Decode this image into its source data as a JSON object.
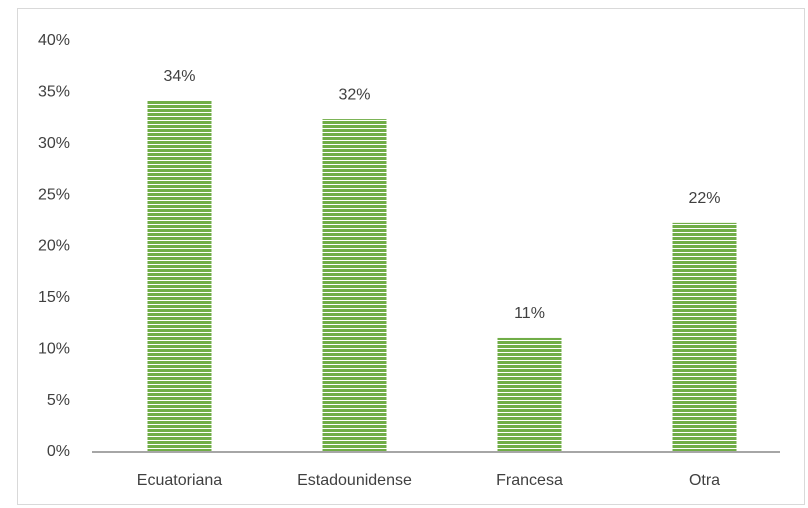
{
  "chart_data": {
    "type": "bar",
    "categories": [
      "Ecuatoriana",
      "Estadounidense",
      "Francesa",
      "Otra"
    ],
    "values": [
      34.2,
      32.4,
      11.1,
      22.3
    ],
    "value_labels": [
      "34%",
      "32%",
      "11%",
      "22%"
    ],
    "color": "#70ad47",
    "ylim": [
      0,
      40
    ],
    "yticks": [
      {
        "value": 0,
        "label": "0%"
      },
      {
        "value": 5,
        "label": "5%"
      },
      {
        "value": 10,
        "label": "10%"
      },
      {
        "value": 15,
        "label": "15%"
      },
      {
        "value": 20,
        "label": "20%"
      },
      {
        "value": 25,
        "label": "25%"
      },
      {
        "value": 30,
        "label": "30%"
      },
      {
        "value": 35,
        "label": "35%"
      },
      {
        "value": 40,
        "label": "40%"
      }
    ],
    "grid": false
  }
}
